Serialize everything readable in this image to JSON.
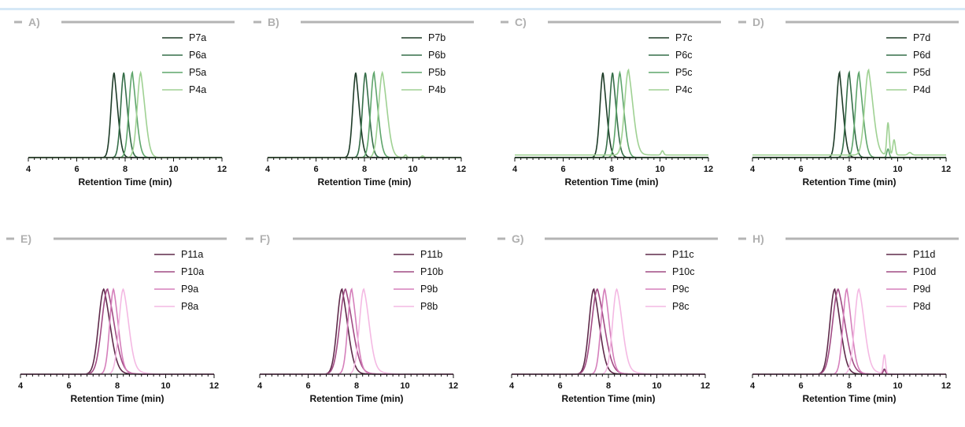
{
  "chart_data": [
    {
      "id": "A",
      "type": "line",
      "panel_label": "A)",
      "xlabel": "Retention Time (min)",
      "xlim": [
        4,
        12
      ],
      "xticks": [
        4,
        6,
        8,
        10,
        12
      ],
      "grid": false,
      "legend_position": "top-right",
      "palette": "green",
      "series": [
        {
          "name": "P7a",
          "color": "#1d3b27",
          "peak": 7.55,
          "width": 0.13,
          "tail": 0.1
        },
        {
          "name": "P6a",
          "color": "#356e48",
          "peak": 7.95,
          "width": 0.13,
          "tail": 0.1
        },
        {
          "name": "P5a",
          "color": "#5ea56b",
          "peak": 8.3,
          "width": 0.14,
          "tail": 0.12
        },
        {
          "name": "P4a",
          "color": "#9fd193",
          "peak": 8.65,
          "width": 0.15,
          "tail": 0.14
        }
      ]
    },
    {
      "id": "B",
      "type": "line",
      "panel_label": "B)",
      "xlabel": "Retention Time (min)",
      "xlim": [
        4,
        12
      ],
      "xticks": [
        4,
        6,
        8,
        10,
        12
      ],
      "grid": false,
      "legend_position": "top-right",
      "palette": "green",
      "series": [
        {
          "name": "P7b",
          "color": "#1d3b27",
          "peak": 7.65,
          "width": 0.13,
          "tail": 0.1
        },
        {
          "name": "P6b",
          "color": "#356e48",
          "peak": 8.05,
          "width": 0.13,
          "tail": 0.1
        },
        {
          "name": "P5b",
          "color": "#5ea56b",
          "peak": 8.4,
          "width": 0.14,
          "tail": 0.12
        },
        {
          "name": "P4b",
          "color": "#9fd193",
          "peak": 8.75,
          "width": 0.16,
          "tail": 0.16
        }
      ]
    },
    {
      "id": "C",
      "type": "line",
      "panel_label": "C)",
      "xlabel": "Retention Time (min)",
      "xlim": [
        4,
        12
      ],
      "xticks": [
        4,
        6,
        8,
        10,
        12
      ],
      "grid": false,
      "legend_position": "top-right",
      "palette": "green",
      "series": [
        {
          "name": "P7c",
          "color": "#1d3b27",
          "peak": 7.65,
          "width": 0.13,
          "tail": 0.1
        },
        {
          "name": "P6c",
          "color": "#356e48",
          "peak": 8.05,
          "width": 0.13,
          "tail": 0.1
        },
        {
          "name": "P5c",
          "color": "#5ea56b",
          "peak": 8.35,
          "width": 0.14,
          "tail": 0.12
        },
        {
          "name": "P4c",
          "color": "#9fd193",
          "peak": 8.7,
          "width": 0.16,
          "tail": 0.16
        }
      ]
    },
    {
      "id": "D",
      "type": "line",
      "panel_label": "D)",
      "xlabel": "Retention Time (min)",
      "xlim": [
        4,
        12
      ],
      "xticks": [
        4,
        6,
        8,
        10,
        12
      ],
      "grid": false,
      "legend_position": "top-right",
      "palette": "green",
      "series": [
        {
          "name": "P7d",
          "color": "#1d3b27",
          "peak": 7.6,
          "width": 0.13,
          "tail": 0.1
        },
        {
          "name": "P6d",
          "color": "#356e48",
          "peak": 8.0,
          "width": 0.13,
          "tail": 0.1
        },
        {
          "name": "P5d",
          "color": "#5ea56b",
          "peak": 8.4,
          "width": 0.14,
          "tail": 0.12
        },
        {
          "name": "P4d",
          "color": "#9fd193",
          "peak": 8.8,
          "width": 0.16,
          "tail": 0.16
        }
      ]
    },
    {
      "id": "E",
      "type": "line",
      "panel_label": "E)",
      "xlabel": "Retention Time (min)",
      "xlim": [
        4,
        12
      ],
      "xticks": [
        4,
        6,
        8,
        10,
        12
      ],
      "grid": false,
      "legend_position": "top-right",
      "palette": "pink",
      "series": [
        {
          "name": "P11a",
          "color": "#5e2a4a",
          "peak": 7.45,
          "width": 0.22,
          "tail": 0.25
        },
        {
          "name": "P10a",
          "color": "#a14b84",
          "peak": 7.6,
          "width": 0.24,
          "tail": 0.28
        },
        {
          "name": "P9a",
          "color": "#d57fbb",
          "peak": 7.85,
          "width": 0.16,
          "tail": 0.2
        },
        {
          "name": "P8a",
          "color": "#f4b9e3",
          "peak": 8.25,
          "width": 0.18,
          "tail": 0.3
        }
      ]
    },
    {
      "id": "F",
      "type": "line",
      "panel_label": "F)",
      "xlabel": "Retention Time (min)",
      "xlim": [
        4,
        12
      ],
      "xticks": [
        4,
        6,
        8,
        10,
        12
      ],
      "grid": false,
      "legend_position": "top-right",
      "palette": "pink",
      "series": [
        {
          "name": "P11b",
          "color": "#5e2a4a",
          "peak": 7.4,
          "width": 0.2,
          "tail": 0.22
        },
        {
          "name": "P10b",
          "color": "#a14b84",
          "peak": 7.55,
          "width": 0.24,
          "tail": 0.28
        },
        {
          "name": "P9b",
          "color": "#d57fbb",
          "peak": 7.8,
          "width": 0.16,
          "tail": 0.2
        },
        {
          "name": "P8b",
          "color": "#f4b9e3",
          "peak": 8.3,
          "width": 0.18,
          "tail": 0.3
        }
      ]
    },
    {
      "id": "G",
      "type": "line",
      "panel_label": "G)",
      "xlabel": "Retention Time (min)",
      "xlim": [
        4,
        12
      ],
      "xticks": [
        4,
        6,
        8,
        10,
        12
      ],
      "grid": false,
      "legend_position": "top-right",
      "palette": "pink",
      "series": [
        {
          "name": "P11c",
          "color": "#5e2a4a",
          "peak": 7.4,
          "width": 0.2,
          "tail": 0.22
        },
        {
          "name": "P10c",
          "color": "#a14b84",
          "peak": 7.55,
          "width": 0.24,
          "tail": 0.28
        },
        {
          "name": "P9c",
          "color": "#d57fbb",
          "peak": 7.85,
          "width": 0.16,
          "tail": 0.2
        },
        {
          "name": "P8c",
          "color": "#f4b9e3",
          "peak": 8.35,
          "width": 0.18,
          "tail": 0.3
        }
      ]
    },
    {
      "id": "H",
      "type": "line",
      "panel_label": "H)",
      "xlabel": "Retention Time (min)",
      "xlim": [
        4,
        12
      ],
      "xticks": [
        4,
        6,
        8,
        10,
        12
      ],
      "grid": false,
      "legend_position": "top-right",
      "palette": "pink",
      "series": [
        {
          "name": "P11d",
          "color": "#5e2a4a",
          "peak": 7.4,
          "width": 0.2,
          "tail": 0.22
        },
        {
          "name": "P10d",
          "color": "#a14b84",
          "peak": 7.55,
          "width": 0.24,
          "tail": 0.28
        },
        {
          "name": "P9d",
          "color": "#d57fbb",
          "peak": 7.9,
          "width": 0.16,
          "tail": 0.2
        },
        {
          "name": "P8d",
          "color": "#f4b9e3",
          "peak": 8.4,
          "width": 0.18,
          "tail": 0.3
        }
      ]
    }
  ]
}
